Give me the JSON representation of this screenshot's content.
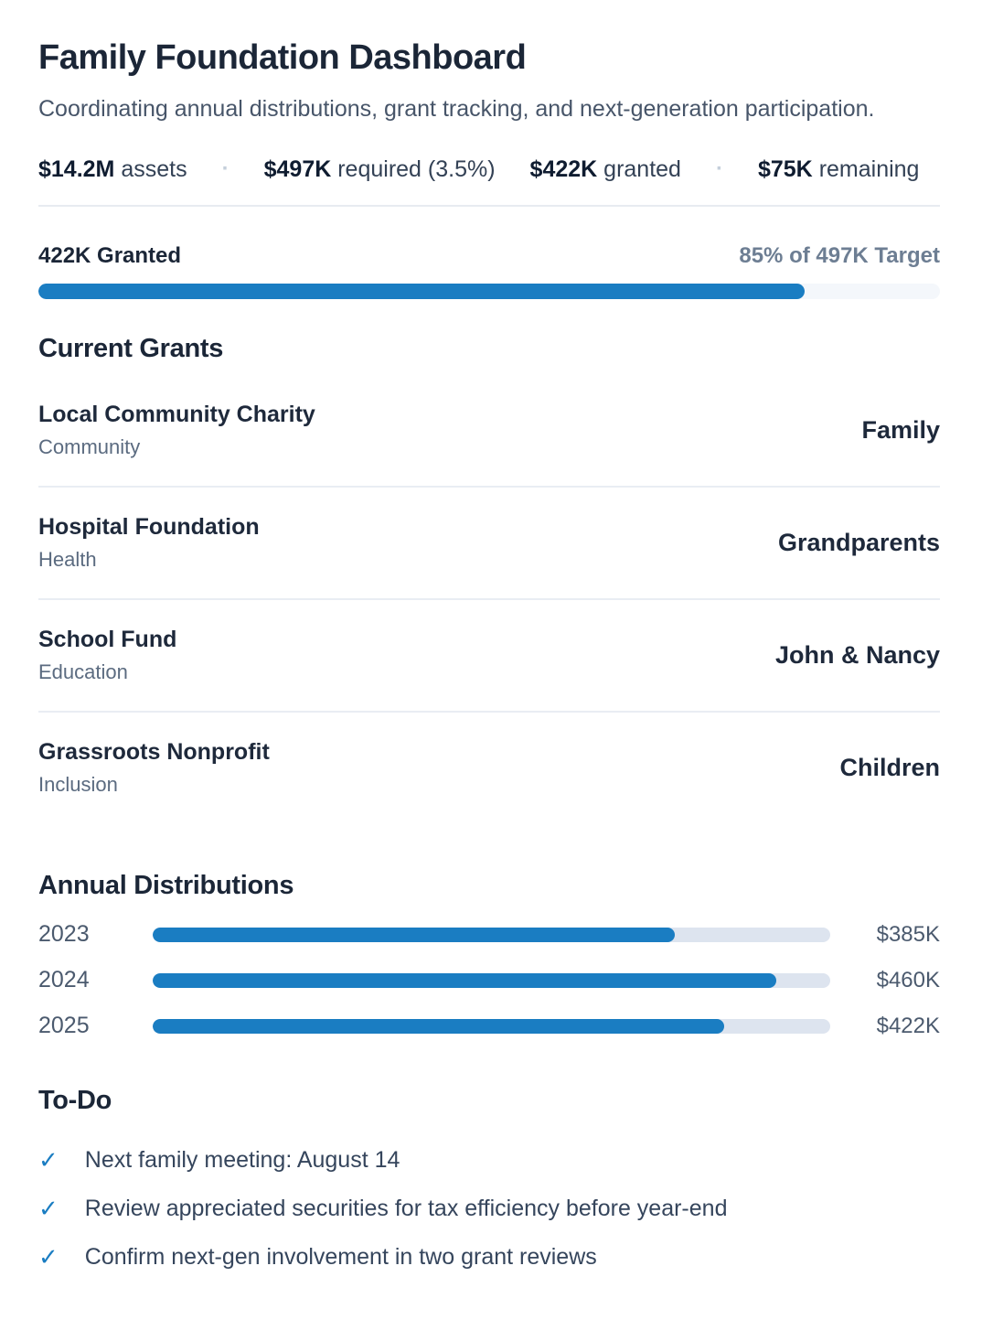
{
  "page": {
    "title": "Family Foundation Dashboard",
    "subtitle": "Coordinating annual distributions, grant tracking, and next-generation participation."
  },
  "stats": {
    "separator": "·",
    "items": [
      {
        "value": "$14.2M",
        "label": "assets"
      },
      {
        "value": "$497K",
        "label": "required (3.5%)"
      },
      {
        "value": "$422K",
        "label": "granted"
      },
      {
        "value": "$75K",
        "label": "remaining"
      }
    ]
  },
  "progress": {
    "left_label": "422K Granted",
    "right_label": "85% of 497K Target",
    "percent": 85
  },
  "grants": {
    "heading": "Current Grants",
    "rows": [
      {
        "name": "Local Community Charity",
        "category": "Community",
        "owner": "Family"
      },
      {
        "name": "Hospital Foundation",
        "category": "Health",
        "owner": "Grandparents"
      },
      {
        "name": "School Fund",
        "category": "Education",
        "owner": "John & Nancy"
      },
      {
        "name": "Grassroots Nonprofit",
        "category": "Inclusion",
        "owner": "Children"
      }
    ]
  },
  "distributions": {
    "heading": "Annual Distributions",
    "rows": [
      {
        "year": "2023",
        "amount": "$385K",
        "pct": 77
      },
      {
        "year": "2024",
        "amount": "$460K",
        "pct": 92
      },
      {
        "year": "2025",
        "amount": "$422K",
        "pct": 84.4
      }
    ]
  },
  "chart_data": {
    "type": "bar",
    "orientation": "horizontal",
    "title": "Annual Distributions",
    "categories": [
      "2023",
      "2024",
      "2025"
    ],
    "values": [
      385,
      460,
      422
    ],
    "value_labels": [
      "$385K",
      "$460K",
      "$422K"
    ],
    "xlim": [
      0,
      500
    ],
    "unit": "thousand USD",
    "bar_color": "#1a7dc2",
    "track_color": "#dde4ef"
  },
  "todo": {
    "heading": "To-Do",
    "check_glyph": "✓",
    "items": [
      "Next family meeting: August 14",
      "Review appreciated securities for tax efficiency before year-end",
      "Confirm next-gen involvement in two grant reviews"
    ]
  },
  "colors": {
    "accent_blue": "#1a7dc2",
    "progress_track": "#f4f7fb",
    "bar_track": "#dde4ef",
    "divider": "#e7ebf1",
    "heading_text": "#1b2637",
    "muted_text": "#475569"
  }
}
